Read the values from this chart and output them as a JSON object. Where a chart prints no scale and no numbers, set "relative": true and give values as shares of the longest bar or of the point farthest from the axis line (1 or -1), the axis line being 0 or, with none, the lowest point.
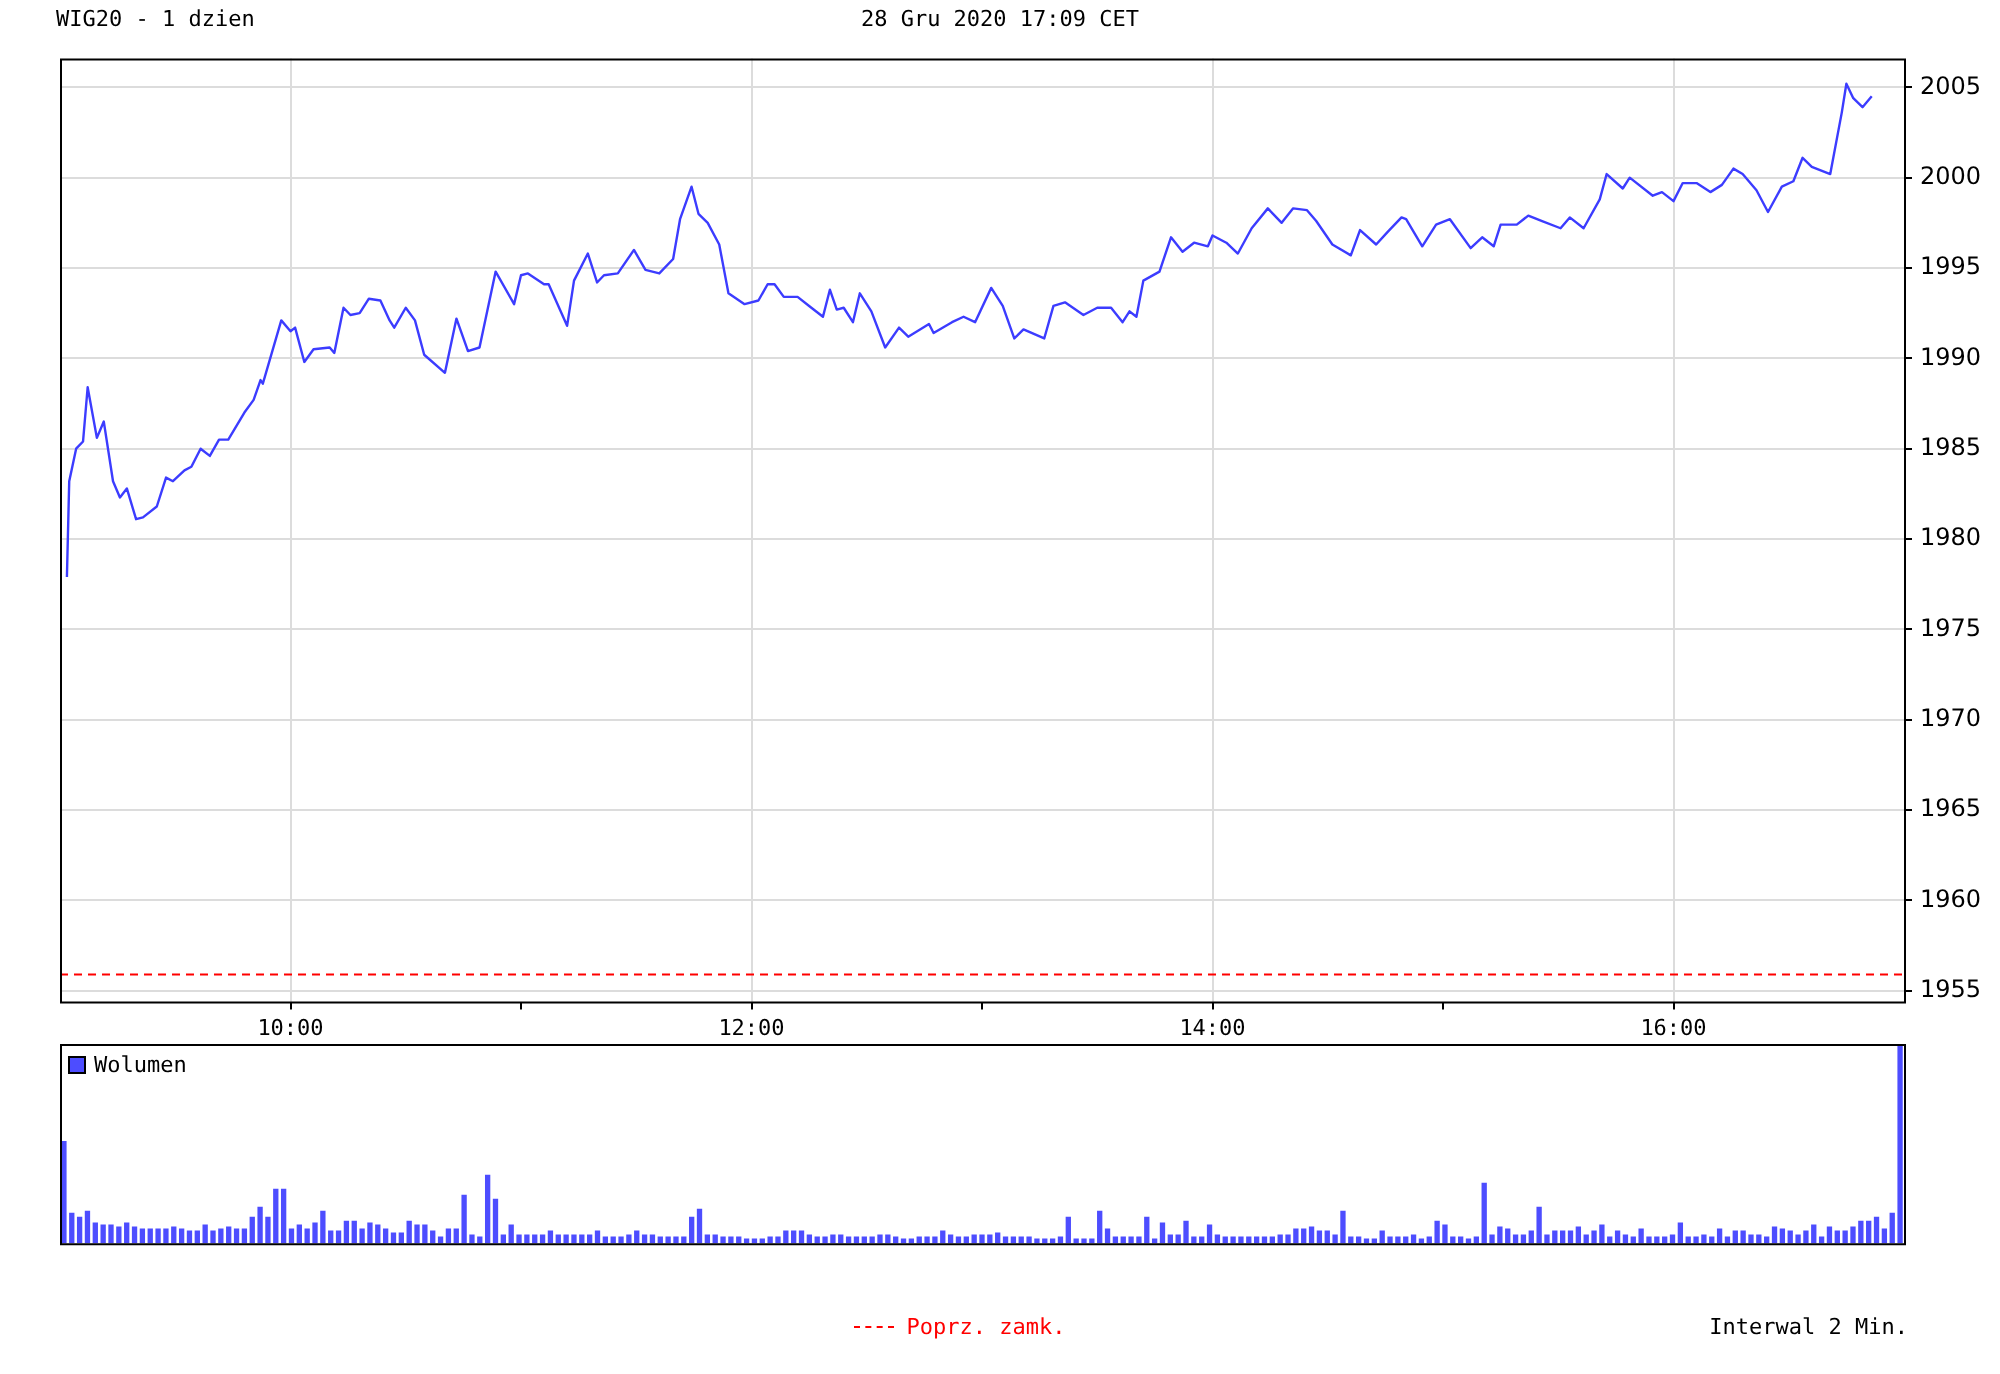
{
  "chart_data": [
    {
      "type": "line",
      "title": "WIG20 - 1 dzien",
      "subtitle": "28 Gru 2020 17:09 CET",
      "x": [
        9.03,
        9.04,
        9.07,
        9.1,
        9.12,
        9.16,
        9.19,
        9.23,
        9.26,
        9.29,
        9.33,
        9.36,
        9.42,
        9.46,
        9.49,
        9.54,
        9.57,
        9.61,
        9.65,
        9.69,
        9.73,
        9.8,
        9.84,
        9.87,
        9.88,
        9.96,
        10.0,
        10.02,
        10.06,
        10.1,
        10.17,
        10.19,
        10.23,
        10.26,
        10.3,
        10.34,
        10.39,
        10.43,
        10.45,
        10.5,
        10.54,
        10.58,
        10.67,
        10.72,
        10.77,
        10.82,
        10.89,
        10.97,
        11.0,
        11.03,
        11.1,
        11.12,
        11.2,
        11.23,
        11.29,
        11.33,
        11.36,
        11.42,
        11.49,
        11.54,
        11.6,
        11.66,
        11.69,
        11.74,
        11.77,
        11.81,
        11.86,
        11.9,
        11.97,
        12.03,
        12.07,
        12.1,
        12.14,
        12.2,
        12.25,
        12.31,
        12.34,
        12.37,
        12.4,
        12.44,
        12.47,
        12.52,
        12.58,
        12.64,
        12.68,
        12.77,
        12.79,
        12.87,
        12.92,
        12.97,
        13.04,
        13.09,
        13.14,
        13.18,
        13.27,
        13.31,
        13.36,
        13.44,
        13.5,
        13.56,
        13.61,
        13.64,
        13.67,
        13.7,
        13.77,
        13.82,
        13.87,
        13.92,
        13.98,
        14.0,
        14.06,
        14.11,
        14.17,
        14.24,
        14.3,
        14.35,
        14.41,
        14.45,
        14.52,
        14.6,
        14.64,
        14.71,
        14.76,
        14.82,
        14.84,
        14.91,
        14.97,
        15.03,
        15.12,
        15.17,
        15.22,
        15.25,
        15.32,
        15.37,
        15.43,
        15.51,
        15.55,
        15.61,
        15.68,
        15.71,
        15.78,
        15.81,
        15.91,
        15.95,
        16.0,
        16.04,
        16.1,
        16.16,
        16.21,
        16.26,
        16.3,
        16.36,
        16.41,
        16.47,
        16.52,
        16.56,
        16.6,
        16.68,
        16.73,
        16.75,
        16.78,
        16.82,
        16.86
      ],
      "series": [
        {
          "color": "#3c3cff",
          "values": [
            1977.9,
            1983.2,
            1985.0,
            1985.4,
            1988.4,
            1985.6,
            1986.5,
            1983.2,
            1982.3,
            1982.8,
            1981.1,
            1981.2,
            1981.8,
            1983.4,
            1983.2,
            1983.8,
            1984.0,
            1985.0,
            1984.6,
            1985.5,
            1985.5,
            1987.0,
            1987.7,
            1988.8,
            1988.6,
            1992.1,
            1991.5,
            1991.7,
            1989.8,
            1990.5,
            1990.6,
            1990.3,
            1992.8,
            1992.4,
            1992.5,
            1993.3,
            1993.2,
            1992.1,
            1991.7,
            1992.8,
            1992.1,
            1990.2,
            1989.2,
            1992.2,
            1990.4,
            1990.6,
            1994.8,
            1993.0,
            1994.6,
            1994.7,
            1994.1,
            1994.1,
            1991.8,
            1994.3,
            1995.8,
            1994.2,
            1994.6,
            1994.7,
            1996.0,
            1994.9,
            1994.7,
            1995.5,
            1997.7,
            1999.5,
            1998.0,
            1997.5,
            1996.3,
            1993.6,
            1993.0,
            1993.2,
            1994.1,
            1994.1,
            1993.4,
            1993.4,
            1992.9,
            1992.3,
            1993.8,
            1992.7,
            1992.8,
            1992.0,
            1993.6,
            1992.6,
            1990.6,
            1991.7,
            1991.2,
            1991.9,
            1991.4,
            1992.0,
            1992.3,
            1992.0,
            1993.9,
            1992.9,
            1991.1,
            1991.6,
            1991.1,
            1992.9,
            1993.1,
            1992.4,
            1992.8,
            1992.8,
            1992.0,
            1992.6,
            1992.3,
            1994.3,
            1994.8,
            1996.7,
            1995.9,
            1996.4,
            1996.2,
            1996.8,
            1996.4,
            1995.8,
            1997.2,
            1998.3,
            1997.5,
            1998.3,
            1998.2,
            1997.6,
            1996.3,
            1995.7,
            1997.1,
            1996.3,
            1997.0,
            1997.8,
            1997.7,
            1996.2,
            1997.4,
            1997.7,
            1996.1,
            1996.7,
            1996.2,
            1997.4,
            1997.4,
            1997.9,
            1997.6,
            1997.2,
            1997.8,
            1997.2,
            1998.8,
            2000.2,
            1999.4,
            2000.0,
            1999.0,
            1999.2,
            1998.7,
            1999.7,
            1999.7,
            1999.2,
            1999.6,
            2000.5,
            2000.2,
            1999.3,
            1998.1,
            1999.5,
            1999.8,
            2001.1,
            2000.6,
            2000.2,
            2003.6,
            2005.2,
            2004.4,
            2003.9,
            2004.5
          ]
        }
      ],
      "xlim": [
        9,
        17
      ],
      "xticks": [
        {
          "value": 10,
          "label": "10:00"
        },
        {
          "value": 11,
          "label": null
        },
        {
          "value": 12,
          "label": "12:00"
        },
        {
          "value": 13,
          "label": null
        },
        {
          "value": 14,
          "label": "14:00"
        },
        {
          "value": 15,
          "label": null
        },
        {
          "value": 16,
          "label": "16:00"
        }
      ],
      "ylim": [
        1954.4,
        2006.6
      ],
      "yticks": [
        1955,
        1960,
        1965,
        1970,
        1975,
        1980,
        1985,
        1990,
        1995,
        2000,
        2005
      ],
      "ref_lines": [
        {
          "axis": "y",
          "value": 1955.9,
          "label": "Poprz. zamk.",
          "color": "#ff0000",
          "line_style": "dashed"
        }
      ],
      "grid": true
    },
    {
      "type": "bar",
      "relative": true,
      "legend": "top left",
      "annotations": [
        "Interwal 2 Min."
      ],
      "categories": [
        null,
        null,
        null,
        null,
        null,
        null,
        null,
        null,
        null,
        null,
        null,
        null,
        null,
        null,
        null,
        null,
        null,
        null,
        null,
        null,
        null,
        null,
        null,
        null,
        null,
        null,
        null,
        null,
        null,
        null,
        null,
        null,
        null,
        null,
        null,
        null,
        null,
        null,
        null,
        null,
        null,
        null,
        null,
        null,
        null,
        null,
        null,
        null,
        null,
        null,
        null,
        null,
        null,
        null,
        null,
        null,
        null,
        null,
        null,
        null,
        null,
        null,
        null,
        null,
        null,
        null,
        null,
        null,
        null,
        null,
        null,
        null,
        null,
        null,
        null,
        null,
        null,
        null,
        null,
        null,
        null,
        null,
        null,
        null,
        null,
        null,
        null,
        null,
        null,
        null,
        null,
        null,
        null,
        null,
        null,
        null,
        null,
        null,
        null,
        null,
        null,
        null,
        null,
        null,
        null,
        null,
        null,
        null,
        null,
        null,
        null,
        null,
        null,
        null,
        null,
        null,
        null,
        null,
        null,
        null,
        null,
        null,
        null,
        null,
        null,
        null,
        null,
        null,
        null,
        null,
        null,
        null,
        null,
        null,
        null,
        null,
        null,
        null,
        null,
        null,
        null,
        null,
        null,
        null,
        null,
        null,
        null,
        null,
        null,
        null,
        null,
        null,
        null,
        null,
        null,
        null,
        null,
        null,
        null,
        null,
        null,
        null,
        null,
        null,
        null,
        null,
        null,
        null,
        null,
        null,
        null,
        null,
        null,
        null,
        null,
        null,
        null,
        null,
        null,
        null,
        null,
        null,
        null,
        null,
        null,
        null,
        null,
        null,
        null,
        null,
        null,
        null,
        null,
        null,
        null,
        null,
        null,
        null,
        null,
        null,
        null,
        null,
        null,
        null,
        null,
        null,
        null,
        null,
        null,
        null,
        null,
        null,
        null,
        null,
        null,
        null,
        null,
        null,
        null,
        null,
        null,
        null,
        null,
        null,
        null,
        null,
        null,
        null,
        null,
        null,
        null,
        null,
        null,
        null,
        null
      ],
      "series": [
        {
          "name": "Wolumen",
          "color": "#4d4dff",
          "values": [
            0.51,
            0.15,
            0.13,
            0.16,
            0.1,
            0.09,
            0.09,
            0.08,
            0.1,
            0.08,
            0.07,
            0.07,
            0.07,
            0.07,
            0.08,
            0.07,
            0.06,
            0.06,
            0.09,
            0.06,
            0.07,
            0.08,
            0.07,
            0.07,
            0.13,
            0.18,
            0.13,
            0.27,
            0.27,
            0.07,
            0.09,
            0.07,
            0.1,
            0.16,
            0.06,
            0.06,
            0.11,
            0.11,
            0.07,
            0.1,
            0.09,
            0.07,
            0.05,
            0.05,
            0.11,
            0.09,
            0.09,
            0.06,
            0.03,
            0.07,
            0.07,
            0.24,
            0.04,
            0.03,
            0.34,
            0.22,
            0.04,
            0.09,
            0.04,
            0.04,
            0.04,
            0.04,
            0.06,
            0.04,
            0.04,
            0.04,
            0.04,
            0.04,
            0.06,
            0.03,
            0.03,
            0.03,
            0.04,
            0.06,
            0.04,
            0.04,
            0.03,
            0.03,
            0.03,
            0.03,
            0.13,
            0.17,
            0.04,
            0.04,
            0.03,
            0.03,
            0.03,
            0.02,
            0.02,
            0.02,
            0.03,
            0.03,
            0.06,
            0.06,
            0.06,
            0.04,
            0.03,
            0.03,
            0.04,
            0.04,
            0.03,
            0.03,
            0.03,
            0.03,
            0.04,
            0.04,
            0.03,
            0.02,
            0.02,
            0.03,
            0.03,
            0.03,
            0.06,
            0.04,
            0.03,
            0.03,
            0.04,
            0.04,
            0.04,
            0.05,
            0.03,
            0.03,
            0.03,
            0.03,
            0.02,
            0.02,
            0.02,
            0.03,
            0.13,
            0.02,
            0.02,
            0.02,
            0.16,
            0.07,
            0.03,
            0.03,
            0.03,
            0.03,
            0.13,
            0.02,
            0.1,
            0.04,
            0.04,
            0.11,
            0.03,
            0.03,
            0.09,
            0.04,
            0.03,
            0.03,
            0.03,
            0.03,
            0.03,
            0.03,
            0.03,
            0.04,
            0.04,
            0.07,
            0.07,
            0.08,
            0.06,
            0.06,
            0.04,
            0.16,
            0.03,
            0.03,
            0.02,
            0.02,
            0.06,
            0.03,
            0.03,
            0.03,
            0.04,
            0.02,
            0.03,
            0.11,
            0.09,
            0.03,
            0.03,
            0.02,
            0.03,
            0.3,
            0.04,
            0.08,
            0.07,
            0.04,
            0.04,
            0.06,
            0.18,
            0.04,
            0.06,
            0.06,
            0.06,
            0.08,
            0.04,
            0.06,
            0.09,
            0.03,
            0.06,
            0.04,
            0.03,
            0.07,
            0.03,
            0.03,
            0.03,
            0.04,
            0.1,
            0.03,
            0.03,
            0.04,
            0.03,
            0.07,
            0.03,
            0.06,
            0.06,
            0.04,
            0.04,
            0.03,
            0.08,
            0.07,
            0.06,
            0.04,
            0.06,
            0.09,
            0.03,
            0.08,
            0.06,
            0.06,
            0.08,
            0.11,
            0.11,
            0.13,
            0.07,
            0.15,
            1
          ]
        }
      ]
    }
  ]
}
